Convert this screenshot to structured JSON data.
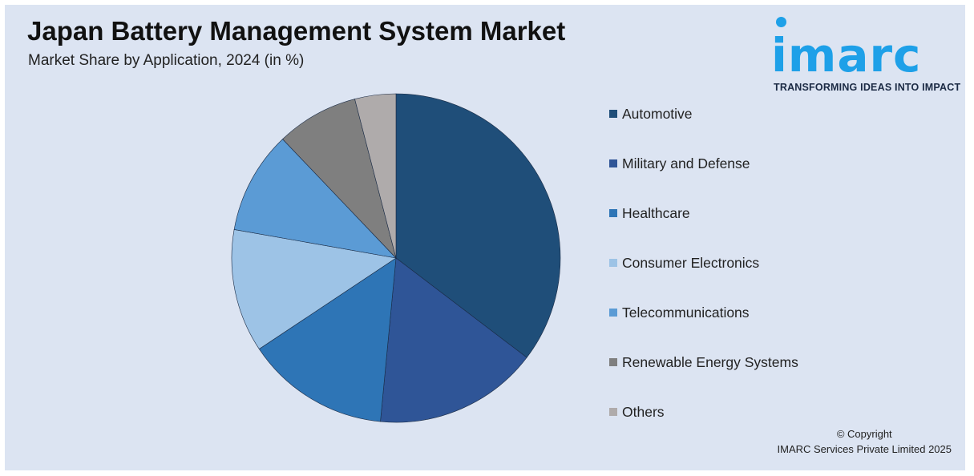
{
  "title": "Japan Battery Management System Market",
  "subtitle": "Market Share by Application, 2024 (in %)",
  "logo": {
    "wordmark": "imarc",
    "tagline": "TRANSFORMING IDEAS INTO IMPACT",
    "color": "#1ea0e8"
  },
  "copyright": {
    "line1": "© Copyright",
    "line2": "IMARC Services Private Limited 2025"
  },
  "chart_data": {
    "type": "pie",
    "title": "Japan Battery Management System Market",
    "subtitle": "Market Share by Application, 2024 (in %)",
    "legend_position": "right",
    "categories": [
      "Automotive",
      "Military and Defense",
      "Healthcare",
      "Consumer Electronics",
      "Telecommunications",
      "Renewable Energy Systems",
      "Others"
    ],
    "values": [
      35,
      16,
      14,
      12,
      10,
      8,
      4
    ],
    "colors": [
      "#1f4e79",
      "#2f5597",
      "#2e75b6",
      "#9dc3e6",
      "#5b9bd5",
      "#7f7f7f",
      "#afabab"
    ]
  }
}
